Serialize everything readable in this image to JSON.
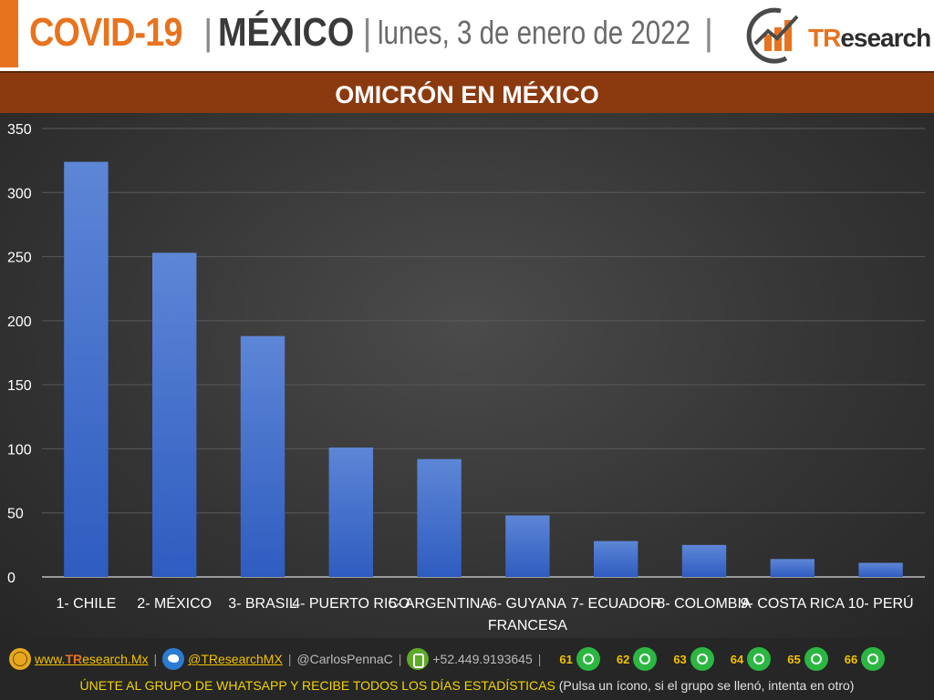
{
  "header": {
    "title_covid": "COVID-19",
    "separator": "|",
    "title_country": "MÉXICO",
    "date": "lunes, 3 de enero de 2022",
    "logo_prefix": "TR",
    "logo_suffix": "esearch"
  },
  "band": {
    "title": "OMICRÓN EN MÉXICO"
  },
  "chart_data": {
    "type": "bar",
    "categories": [
      "1- CHILE",
      "2- MÉXICO",
      "3- BRASIL",
      "4- PUERTO RICO",
      "5- ARGENTINA",
      "6- GUYANA FRANCESA",
      "7- ECUADOR",
      "8- COLOMBIA",
      "9- COSTA RICA",
      "10- PERÚ"
    ],
    "category_lines": [
      [
        "1- CHILE"
      ],
      [
        "2- MÉXICO"
      ],
      [
        "3- BRASIL"
      ],
      [
        "4- PUERTO RICO"
      ],
      [
        "5- ARGENTINA"
      ],
      [
        "6- GUYANA",
        "FRANCESA"
      ],
      [
        "7- ECUADOR"
      ],
      [
        "8- COLOMBIA"
      ],
      [
        "9- COSTA RICA"
      ],
      [
        "10- PERÚ"
      ]
    ],
    "values": [
      324,
      253,
      188,
      101,
      92,
      48,
      28,
      25,
      14,
      11
    ],
    "yticks": [
      0,
      50,
      100,
      150,
      200,
      250,
      300,
      350
    ],
    "ylim": [
      0,
      350
    ],
    "grid": true,
    "bar_color_top": "#5d86d6",
    "bar_color_bottom": "#2f5cc0"
  },
  "footer": {
    "website_prefix": "www.",
    "website_tr": "TR",
    "website_rest": "esearch.Mx",
    "twitter": "@TResearchMX",
    "handle": "@CarlosPennaC",
    "phone": "+52.449.9193645",
    "whatsapp_groups": [
      "61",
      "62",
      "63",
      "64",
      "65",
      "66"
    ],
    "cta": "ÚNETE AL GRUPO DE WHATSAPP Y RECIBE TODOS LOS DÍAS ESTADÍSTICAS",
    "cta_note": "(Pulsa un ícono, si el grupo se llenó, intenta en otro)",
    "sep": "|"
  }
}
